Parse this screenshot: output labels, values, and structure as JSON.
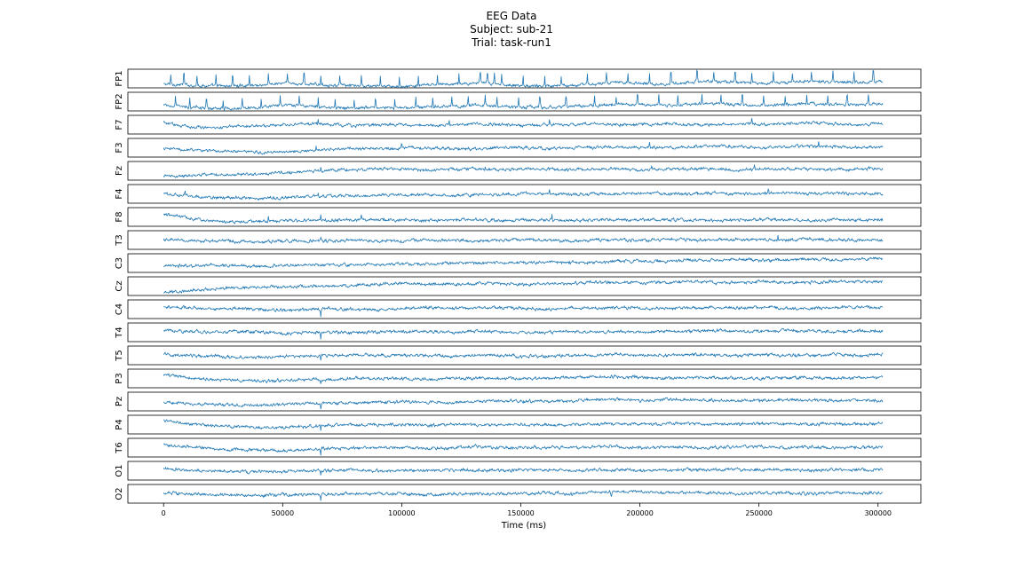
{
  "figure": {
    "title_lines": [
      "EEG Data",
      "Subject: sub-21",
      "Trial: task-run1"
    ]
  },
  "chart_data": {
    "type": "line",
    "title": "EEG Data",
    "subtitle": [
      "Subject: sub-21",
      "Trial: task-run1"
    ],
    "xlabel": "Time (ms)",
    "ylabel": "",
    "xlim": [
      -15000,
      318000
    ],
    "x_range_data": [
      0,
      302000
    ],
    "xticks": [
      0,
      50000,
      100000,
      150000,
      200000,
      250000,
      300000
    ],
    "xtick_labels": [
      "0",
      "50000",
      "100000",
      "150000",
      "200000",
      "250000",
      "300000"
    ],
    "grid": false,
    "legend": "none",
    "line_color": "#1f77b4",
    "channels": [
      "FP1",
      "FP2",
      "F7",
      "F3",
      "Fz",
      "F4",
      "F8",
      "T3",
      "C3",
      "Cz",
      "C4",
      "T4",
      "T5",
      "P3",
      "Pz",
      "P4",
      "T6",
      "O1",
      "O2"
    ],
    "series": [
      {
        "name": "FP1",
        "trend": [
          0.2,
          0.15,
          0.1,
          0.1,
          0.15,
          0.25,
          0.2,
          0.15,
          0.1,
          0.1,
          0.05,
          0.15,
          0.2,
          0.25,
          0.2,
          0.1,
          0.1,
          0.15,
          0.2,
          0.3,
          0.25,
          0.2,
          0.3,
          0.35,
          0.3,
          0.25,
          0.3,
          0.35,
          0.3,
          0.3,
          0.35
        ],
        "spikes": [
          3000,
          8500,
          14000,
          22000,
          29000,
          36000,
          44000,
          52000,
          59000,
          66000,
          74000,
          83000,
          91000,
          99000,
          107000,
          115000,
          124000,
          133000,
          136000,
          139000,
          142000,
          151000,
          160000,
          167000,
          178000,
          186000,
          195000,
          204000,
          213000,
          224000,
          231000,
          240000,
          247000,
          256000,
          264000,
          272000,
          281000,
          290000,
          298000
        ],
        "spike_height": 1.0
      },
      {
        "name": "FP2",
        "trend": [
          0.3,
          0.2,
          0.15,
          0.15,
          0.2,
          0.3,
          0.25,
          0.2,
          0.15,
          0.2,
          0.15,
          0.2,
          0.25,
          0.3,
          0.25,
          0.2,
          0.2,
          0.25,
          0.3,
          0.35,
          0.35,
          0.3,
          0.35,
          0.4,
          0.35,
          0.3,
          0.35,
          0.4,
          0.35,
          0.35,
          0.4
        ],
        "spikes": [
          5000,
          11000,
          18000,
          25000,
          33000,
          41000,
          49000,
          57000,
          65000,
          72000,
          80000,
          89000,
          97000,
          106000,
          113000,
          121000,
          128000,
          135000,
          140000,
          149000,
          158000,
          169000,
          181000,
          190000,
          199000,
          208000,
          216000,
          226000,
          234000,
          243000,
          252000,
          261000,
          270000,
          279000,
          287000,
          296000
        ],
        "spike_height": 0.9
      },
      {
        "name": "F7",
        "trend": [
          0.6,
          0.4,
          0.35,
          0.4,
          0.45,
          0.5,
          0.55,
          0.5,
          0.45,
          0.5,
          0.5,
          0.45,
          0.5,
          0.55,
          0.5,
          0.45,
          0.5,
          0.5,
          0.55,
          0.5,
          0.5,
          0.55,
          0.5,
          0.5,
          0.55,
          0.5,
          0.55,
          0.6,
          0.55,
          0.5,
          0.55
        ],
        "spikes": [
          65000,
          120000,
          162000,
          247000
        ],
        "spike_height": 0.5
      },
      {
        "name": "F3",
        "trend": [
          0.45,
          0.4,
          0.35,
          0.3,
          0.25,
          0.3,
          0.35,
          0.4,
          0.45,
          0.45,
          0.5,
          0.5,
          0.45,
          0.45,
          0.5,
          0.5,
          0.45,
          0.5,
          0.5,
          0.55,
          0.5,
          0.5,
          0.55,
          0.6,
          0.55,
          0.5,
          0.55,
          0.6,
          0.55,
          0.5,
          0.55
        ],
        "spikes": [
          64000,
          100000,
          204000,
          275000
        ],
        "spike_height": 0.45
      },
      {
        "name": "Fz",
        "trend": [
          0.2,
          0.25,
          0.3,
          0.3,
          0.35,
          0.4,
          0.45,
          0.55,
          0.55,
          0.6,
          0.6,
          0.55,
          0.6,
          0.6,
          0.55,
          0.6,
          0.6,
          0.55,
          0.6,
          0.6,
          0.55,
          0.6,
          0.6,
          0.6,
          0.55,
          0.6,
          0.6,
          0.6,
          0.55,
          0.6,
          0.6
        ],
        "spikes": [
          66000,
          135000,
          205000,
          248000
        ],
        "spike_height": 0.4
      },
      {
        "name": "F4",
        "trend": [
          0.5,
          0.4,
          0.3,
          0.3,
          0.25,
          0.3,
          0.35,
          0.4,
          0.4,
          0.45,
          0.45,
          0.45,
          0.4,
          0.45,
          0.45,
          0.5,
          0.5,
          0.45,
          0.5,
          0.5,
          0.55,
          0.5,
          0.5,
          0.55,
          0.5,
          0.55,
          0.55,
          0.5,
          0.55,
          0.5,
          0.5
        ],
        "spikes": [
          9000,
          65000,
          162000,
          254000
        ],
        "spike_height": 0.45
      },
      {
        "name": "F8",
        "trend": [
          0.65,
          0.45,
          0.3,
          0.25,
          0.25,
          0.3,
          0.3,
          0.3,
          0.35,
          0.35,
          0.35,
          0.3,
          0.35,
          0.35,
          0.3,
          0.35,
          0.35,
          0.3,
          0.35,
          0.35,
          0.35,
          0.35,
          0.35,
          0.3,
          0.35,
          0.35,
          0.35,
          0.3,
          0.35,
          0.35,
          0.35
        ],
        "spikes": [
          44000,
          66000,
          83000,
          163000
        ],
        "spike_height": 0.5
      },
      {
        "name": "T3",
        "trend": [
          0.5,
          0.45,
          0.45,
          0.45,
          0.4,
          0.45,
          0.45,
          0.45,
          0.5,
          0.45,
          0.45,
          0.5,
          0.5,
          0.45,
          0.5,
          0.5,
          0.5,
          0.45,
          0.5,
          0.5,
          0.5,
          0.55,
          0.5,
          0.5,
          0.55,
          0.5,
          0.5,
          0.55,
          0.5,
          0.5,
          0.5
        ],
        "spikes": [
          66000,
          258000
        ],
        "spike_height": 0.4
      },
      {
        "name": "C3",
        "trend": [
          0.35,
          0.35,
          0.4,
          0.35,
          0.35,
          0.35,
          0.4,
          0.4,
          0.4,
          0.45,
          0.45,
          0.45,
          0.5,
          0.5,
          0.5,
          0.5,
          0.55,
          0.55,
          0.55,
          0.6,
          0.6,
          0.6,
          0.65,
          0.65,
          0.7,
          0.65,
          0.7,
          0.7,
          0.7,
          0.7,
          0.75
        ],
        "spikes": [],
        "spike_height": 0.3
      },
      {
        "name": "Cz",
        "trend": [
          0.15,
          0.25,
          0.35,
          0.4,
          0.45,
          0.45,
          0.5,
          0.5,
          0.55,
          0.6,
          0.65,
          0.6,
          0.6,
          0.65,
          0.65,
          0.6,
          0.65,
          0.65,
          0.7,
          0.7,
          0.7,
          0.7,
          0.75,
          0.7,
          0.7,
          0.75,
          0.7,
          0.7,
          0.75,
          0.75,
          0.75
        ],
        "spikes": [],
        "spike_height": 0.3
      },
      {
        "name": "C4",
        "trend": [
          0.65,
          0.6,
          0.5,
          0.55,
          0.5,
          0.45,
          0.5,
          0.55,
          0.5,
          0.5,
          0.55,
          0.6,
          0.55,
          0.6,
          0.6,
          0.55,
          0.5,
          0.55,
          0.55,
          0.6,
          0.55,
          0.55,
          0.55,
          0.6,
          0.55,
          0.6,
          0.55,
          0.55,
          0.6,
          0.6,
          0.55
        ],
        "spikes": [
          66000
        ],
        "spike_height": -0.6
      },
      {
        "name": "T4",
        "trend": [
          0.6,
          0.55,
          0.5,
          0.55,
          0.5,
          0.45,
          0.5,
          0.5,
          0.5,
          0.5,
          0.55,
          0.55,
          0.5,
          0.55,
          0.55,
          0.5,
          0.5,
          0.55,
          0.5,
          0.55,
          0.5,
          0.55,
          0.55,
          0.6,
          0.55,
          0.55,
          0.6,
          0.55,
          0.55,
          0.55,
          0.55
        ],
        "spikes": [
          66000
        ],
        "spike_height": -0.7
      },
      {
        "name": "T5",
        "trend": [
          0.55,
          0.5,
          0.45,
          0.4,
          0.4,
          0.45,
          0.45,
          0.5,
          0.5,
          0.5,
          0.5,
          0.5,
          0.45,
          0.5,
          0.5,
          0.45,
          0.45,
          0.5,
          0.5,
          0.55,
          0.5,
          0.5,
          0.55,
          0.5,
          0.5,
          0.55,
          0.5,
          0.5,
          0.55,
          0.5,
          0.55
        ],
        "spikes": [
          66000
        ],
        "spike_height": -0.5
      },
      {
        "name": "P3",
        "trend": [
          0.7,
          0.55,
          0.45,
          0.4,
          0.35,
          0.4,
          0.45,
          0.45,
          0.5,
          0.5,
          0.5,
          0.45,
          0.5,
          0.5,
          0.5,
          0.5,
          0.5,
          0.55,
          0.6,
          0.6,
          0.55,
          0.5,
          0.55,
          0.55,
          0.5,
          0.5,
          0.55,
          0.55,
          0.5,
          0.55,
          0.55
        ],
        "spikes": [
          66000
        ],
        "spike_height": -0.5
      },
      {
        "name": "Pz",
        "trend": [
          0.45,
          0.4,
          0.35,
          0.3,
          0.3,
          0.35,
          0.4,
          0.4,
          0.45,
          0.45,
          0.5,
          0.45,
          0.45,
          0.5,
          0.55,
          0.5,
          0.5,
          0.55,
          0.6,
          0.6,
          0.55,
          0.6,
          0.6,
          0.55,
          0.55,
          0.55,
          0.6,
          0.55,
          0.55,
          0.55,
          0.55
        ],
        "spikes": [
          66000
        ],
        "spike_height": -0.5
      },
      {
        "name": "P4",
        "trend": [
          0.75,
          0.55,
          0.45,
          0.4,
          0.35,
          0.35,
          0.4,
          0.45,
          0.5,
          0.5,
          0.5,
          0.45,
          0.5,
          0.5,
          0.5,
          0.5,
          0.5,
          0.5,
          0.55,
          0.55,
          0.5,
          0.55,
          0.55,
          0.5,
          0.55,
          0.55,
          0.55,
          0.5,
          0.55,
          0.5,
          0.55
        ],
        "spikes": [
          66000
        ],
        "spike_height": -0.5
      },
      {
        "name": "T6",
        "trend": [
          0.65,
          0.55,
          0.45,
          0.4,
          0.35,
          0.35,
          0.4,
          0.45,
          0.5,
          0.5,
          0.5,
          0.45,
          0.5,
          0.55,
          0.5,
          0.5,
          0.5,
          0.5,
          0.55,
          0.55,
          0.5,
          0.55,
          0.5,
          0.5,
          0.55,
          0.55,
          0.5,
          0.55,
          0.5,
          0.5,
          0.55
        ],
        "spikes": [
          66000
        ],
        "spike_height": -0.6
      },
      {
        "name": "O1",
        "trend": [
          0.6,
          0.55,
          0.5,
          0.45,
          0.45,
          0.45,
          0.5,
          0.5,
          0.55,
          0.5,
          0.5,
          0.5,
          0.55,
          0.55,
          0.5,
          0.55,
          0.55,
          0.5,
          0.55,
          0.55,
          0.5,
          0.55,
          0.55,
          0.55,
          0.55,
          0.55,
          0.55,
          0.5,
          0.55,
          0.55,
          0.55
        ],
        "spikes": [
          66000
        ],
        "spike_height": -0.5
      },
      {
        "name": "O2",
        "trend": [
          0.55,
          0.5,
          0.45,
          0.45,
          0.4,
          0.45,
          0.45,
          0.5,
          0.5,
          0.5,
          0.5,
          0.45,
          0.5,
          0.5,
          0.5,
          0.5,
          0.55,
          0.5,
          0.6,
          0.65,
          0.6,
          0.55,
          0.55,
          0.55,
          0.5,
          0.55,
          0.55,
          0.5,
          0.55,
          0.55,
          0.55
        ],
        "spikes": [
          66000,
          188000
        ],
        "spike_height": -0.5
      }
    ]
  }
}
